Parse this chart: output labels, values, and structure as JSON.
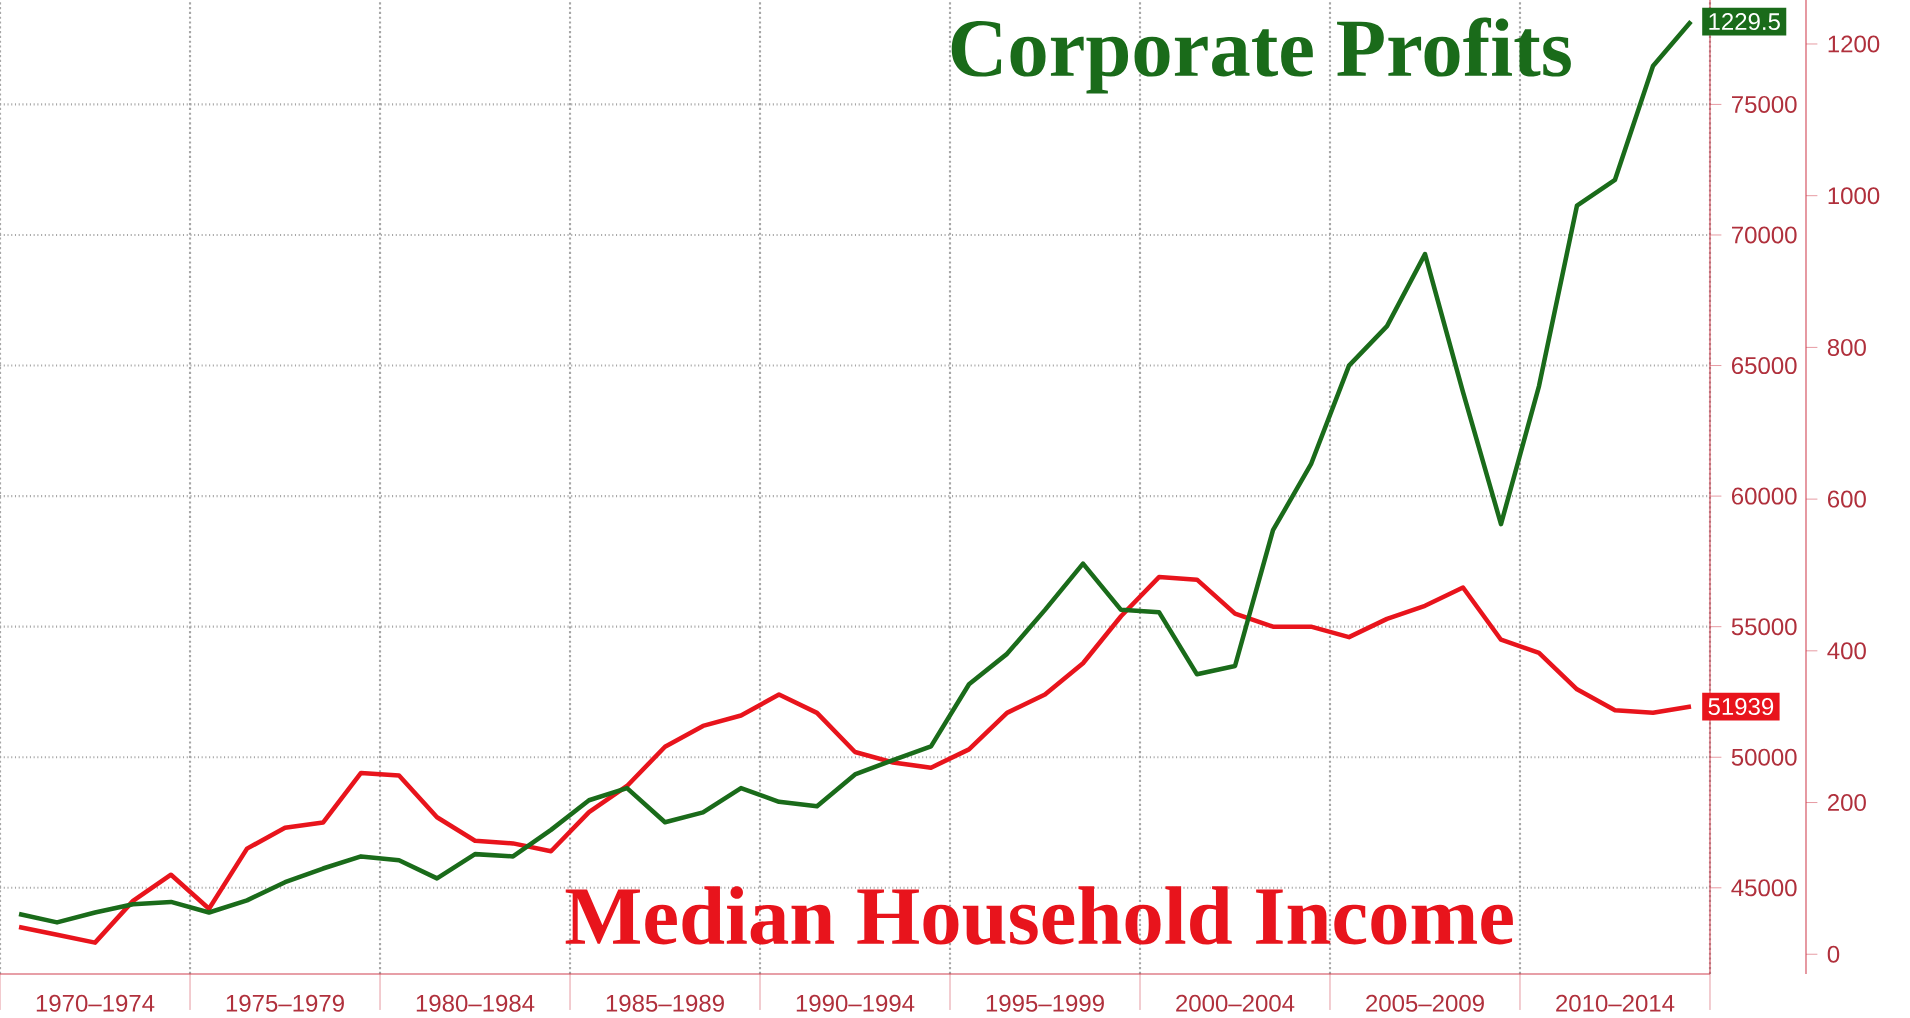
{
  "chart_data": {
    "type": "line",
    "categories": [
      null,
      null,
      "1970–1974",
      null,
      null,
      null,
      null,
      "1975–1979",
      null,
      null,
      null,
      null,
      "1980–1984",
      null,
      null,
      null,
      null,
      "1985–1989",
      null,
      null,
      null,
      null,
      "1990–1994",
      null,
      null,
      null,
      null,
      "1995–1999",
      null,
      null,
      null,
      null,
      "2000–2004",
      null,
      null,
      null,
      null,
      "2005–2009",
      null,
      null,
      null,
      null,
      "2010–2014",
      null,
      null
    ],
    "series": [
      {
        "name": "Median Household Income",
        "color": "#e8141c",
        "values": [
          43500,
          43200,
          42900,
          44500,
          45500,
          44200,
          46500,
          47300,
          47500,
          49400,
          49300,
          47700,
          46800,
          46700,
          46400,
          47900,
          48900,
          50400,
          51200,
          51600,
          52400,
          51700,
          50200,
          49800,
          49600,
          50300,
          51700,
          52400,
          53600,
          55400,
          56900,
          56800,
          55500,
          55000,
          55000,
          54600,
          55300,
          55800,
          56500,
          54500,
          54000,
          52600,
          51800,
          51700,
          51939
        ],
        "value_labels": [
          null,
          null,
          null,
          null,
          null,
          null,
          null,
          null,
          null,
          null,
          null,
          null,
          null,
          null,
          null,
          null,
          null,
          null,
          null,
          null,
          null,
          null,
          null,
          null,
          null,
          null,
          null,
          null,
          null,
          null,
          null,
          null,
          null,
          null,
          null,
          null,
          null,
          null,
          null,
          null,
          null,
          null,
          null,
          null,
          "51939"
        ]
      },
      {
        "name": "Corporate Profits",
        "color": "#1a6b1a",
        "axis": "y2",
        "values": [
          53,
          42,
          55,
          66,
          69,
          55,
          71,
          95,
          113,
          129,
          124,
          100,
          132,
          129,
          164,
          203,
          219,
          174,
          187,
          219,
          201,
          195,
          237,
          256,
          274,
          356,
          396,
          454,
          515,
          454,
          451,
          369,
          380,
          559,
          646,
          776,
          828,
          923,
          741,
          567,
          749,
          987,
          1021,
          1171,
          1229.5
        ],
        "value_labels": [
          null,
          null,
          null,
          null,
          null,
          null,
          null,
          null,
          null,
          null,
          null,
          null,
          null,
          null,
          null,
          null,
          null,
          null,
          null,
          null,
          null,
          null,
          null,
          null,
          null,
          null,
          null,
          null,
          null,
          null,
          null,
          null,
          null,
          null,
          null,
          null,
          null,
          null,
          null,
          null,
          null,
          null,
          null,
          null,
          "1229.5"
        ]
      }
    ],
    "ylim": [
      41700,
      79000
    ],
    "yticks": [
      45000,
      50000,
      55000,
      60000,
      65000,
      70000,
      75000
    ],
    "y2lim": [
      -26,
      1258
    ],
    "y2ticks": [
      0,
      200,
      400,
      600,
      800,
      1000,
      1200
    ],
    "grid": true,
    "line_style": "solid"
  }
}
